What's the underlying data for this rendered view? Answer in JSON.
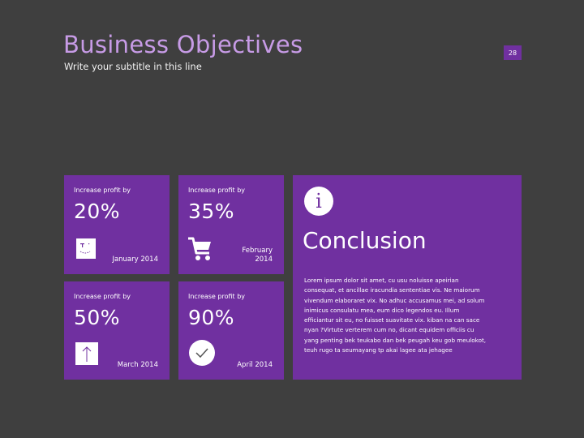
{
  "slide": {
    "title": "Business Objectives",
    "subtitle": "Write your subtitle in this line",
    "page_number": "28"
  },
  "tiles": [
    {
      "label": "Increase profit by",
      "value": "20%",
      "date": "January 2014",
      "icon": "calendar-icon"
    },
    {
      "label": "Increase profit by",
      "value": "35%",
      "date": "February 2014",
      "icon": "shopping-cart-icon"
    },
    {
      "label": "Increase profit by",
      "value": "50%",
      "date": "March 2014",
      "icon": "arrow-up-icon"
    },
    {
      "label": "Increase profit by",
      "value": "90%",
      "date": "April 2014",
      "icon": "checkmark-icon"
    }
  ],
  "conclusion": {
    "icon": "info-icon",
    "icon_glyph": "i",
    "heading": "Conclusion",
    "body": "Lorem ipsum dolor sit amet, cu usu noluisse apeirian consequat, et ancillae iracundia sententiae vis. Ne maiorum vivendum elaboraret vix. No adhuc accusamus mei, ad solum inimicus consulatu mea, eum dico legendos eu. Illum efficiantur sit eu, no fuisset suavitate vix. kiban na can sace nyan ?Virtute verterem cum no, dicant equidem officiis cu yang penting bek teukabo dan bek peugah keu gob meulokot, teuh rugo ta seumayang tp akai lagee ata jehagee"
  },
  "colors": {
    "background": "#3f3f3f",
    "tile": "#7030a0",
    "title": "#c79be6",
    "text": "#ffffff"
  }
}
